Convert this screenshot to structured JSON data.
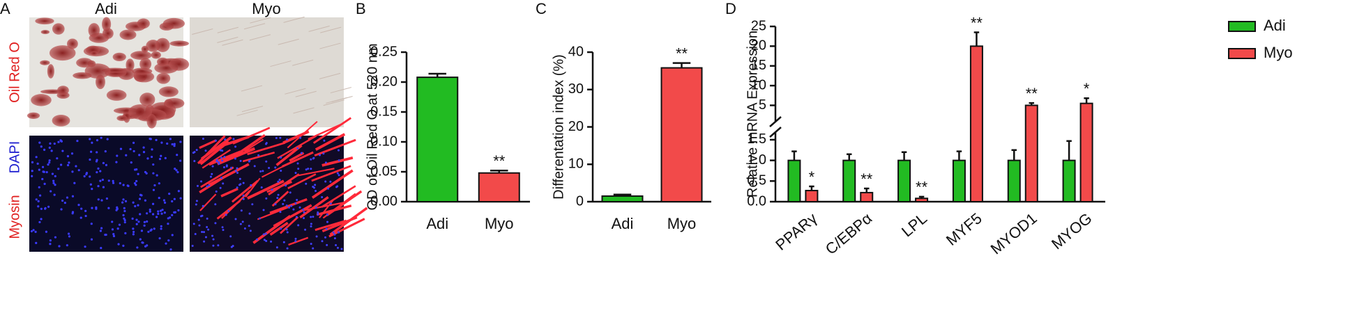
{
  "panel_a": {
    "panel": "A",
    "columns": [
      "Adi",
      "Myo"
    ],
    "rows": [
      [
        "Oil Red O"
      ],
      [
        "DAPI",
        "Myosin"
      ]
    ]
  },
  "chart_data": [
    {
      "type": "bar",
      "panel": "B",
      "ylabel": "OD of Oil Red O at 520 nm",
      "categories": [
        "Adi",
        "Myo"
      ],
      "values": [
        0.208,
        0.048
      ],
      "errors": [
        0.006,
        0.004
      ],
      "colors": [
        "#22bb22",
        "#f24a4a"
      ],
      "annotations": [
        null,
        "**"
      ],
      "ylim": [
        0,
        0.25
      ],
      "yticks": [
        {
          "value": 0,
          "label": "0.00"
        },
        {
          "value": 0.05,
          "label": "0.05"
        },
        {
          "value": 0.1,
          "label": "0.10"
        },
        {
          "value": 0.15,
          "label": "0.15"
        },
        {
          "value": 0.2,
          "label": "0.20"
        },
        {
          "value": 0.25,
          "label": "0.25"
        }
      ]
    },
    {
      "type": "bar",
      "panel": "C",
      "ylabel": "Differentation index (%)",
      "categories": [
        "Adi",
        "Myo"
      ],
      "values": [
        1.5,
        35.8
      ],
      "errors": [
        0.4,
        1.3
      ],
      "colors": [
        "#22bb22",
        "#f24a4a"
      ],
      "annotations": [
        null,
        "**"
      ],
      "ylim": [
        0,
        40
      ],
      "yticks": [
        0,
        10,
        20,
        30,
        40
      ]
    },
    {
      "type": "grouped_bar",
      "panel": "D",
      "ylabel": "Relative mRNA Expression",
      "categories": [
        "PPARγ",
        "C/EBPα",
        "LPL",
        "MYF5",
        "MYOD1",
        "MYOG"
      ],
      "series": [
        {
          "name": "Adi",
          "color": "#22bb22",
          "values": [
            1,
            1,
            1,
            1,
            1,
            1
          ],
          "errors": [
            0.22,
            0.15,
            0.2,
            0.22,
            0.25,
            0.47
          ],
          "annotations": [
            null,
            null,
            null,
            null,
            null,
            null
          ]
        },
        {
          "name": "Myo",
          "color": "#f24a4a",
          "values": [
            0.27,
            0.22,
            0.08,
            20,
            5,
            5.5
          ],
          "errors": [
            0.1,
            0.1,
            0.04,
            3.5,
            0.6,
            1.3
          ],
          "annotations": [
            "*",
            "**",
            "**",
            "**",
            "**",
            "*"
          ]
        }
      ],
      "ylim": [
        0,
        25
      ],
      "ybreak": [
        1.6,
        3.5
      ],
      "yticks": [
        {
          "value": 0,
          "label": "0.0"
        },
        {
          "value": 0.5,
          "label": "0.5"
        },
        {
          "value": 1,
          "label": "1.0"
        },
        {
          "value": 1.5,
          "label": "1.5"
        },
        5,
        10,
        15,
        20,
        25
      ],
      "legend": "upper right"
    }
  ]
}
